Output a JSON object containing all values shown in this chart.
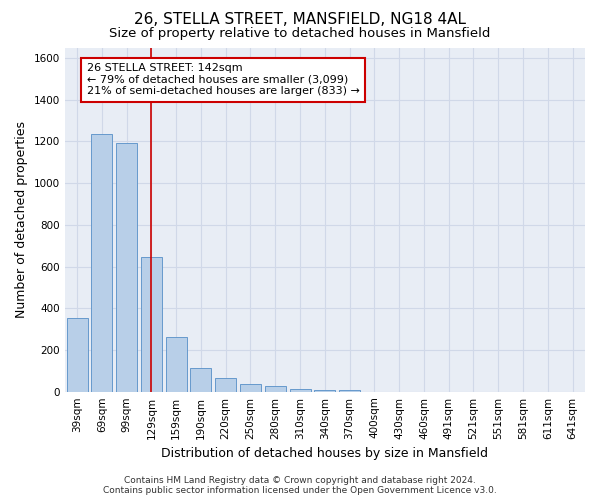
{
  "title": "26, STELLA STREET, MANSFIELD, NG18 4AL",
  "subtitle": "Size of property relative to detached houses in Mansfield",
  "xlabel": "Distribution of detached houses by size in Mansfield",
  "ylabel": "Number of detached properties",
  "categories": [
    "39sqm",
    "69sqm",
    "99sqm",
    "129sqm",
    "159sqm",
    "190sqm",
    "220sqm",
    "250sqm",
    "280sqm",
    "310sqm",
    "340sqm",
    "370sqm",
    "400sqm",
    "430sqm",
    "460sqm",
    "491sqm",
    "521sqm",
    "551sqm",
    "581sqm",
    "611sqm",
    "641sqm"
  ],
  "values": [
    355,
    1235,
    1190,
    645,
    260,
    115,
    65,
    35,
    25,
    15,
    10,
    10,
    0,
    0,
    0,
    0,
    0,
    0,
    0,
    0,
    0
  ],
  "bar_color": "#b8cfe8",
  "bar_edge_color": "#6699cc",
  "red_line_x": 3.0,
  "annotation_line1": "26 STELLA STREET: 142sqm",
  "annotation_line2": "← 79% of detached houses are smaller (3,099)",
  "annotation_line3": "21% of semi-detached houses are larger (833) →",
  "annotation_box_color": "#ffffff",
  "annotation_box_edge": "#cc0000",
  "ylim": [
    0,
    1650
  ],
  "yticks": [
    0,
    200,
    400,
    600,
    800,
    1000,
    1200,
    1400,
    1600
  ],
  "background_color": "#e8edf5",
  "grid_color": "#d0d8e8",
  "footer": "Contains HM Land Registry data © Crown copyright and database right 2024.\nContains public sector information licensed under the Open Government Licence v3.0.",
  "title_fontsize": 11,
  "subtitle_fontsize": 9.5,
  "xlabel_fontsize": 9,
  "ylabel_fontsize": 9,
  "tick_fontsize": 7.5,
  "annotation_fontsize": 8,
  "footer_fontsize": 6.5
}
